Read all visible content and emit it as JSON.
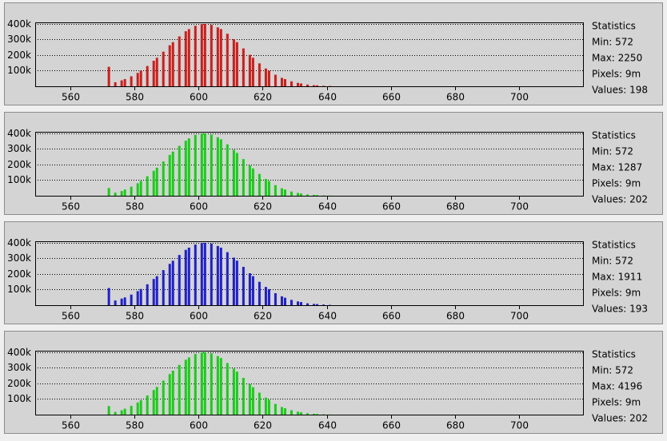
{
  "chart_data": [
    {
      "type": "bar",
      "color": "#c8201e",
      "xlim": [
        549,
        720
      ],
      "xticks": [
        560,
        580,
        600,
        620,
        640,
        660,
        680,
        700
      ],
      "ylim": [
        0,
        410000
      ],
      "yticks": [
        {
          "value": 100000,
          "label": "100k"
        },
        {
          "value": 200000,
          "label": "200k"
        },
        {
          "value": 300000,
          "label": "300k"
        },
        {
          "value": 400000,
          "label": "400k"
        }
      ],
      "grid": true,
      "statistics": [
        "Statistics",
        "Min: 572",
        "Max: 2250",
        "Pixels: 9m",
        "Values: 198"
      ],
      "x": [
        572,
        574,
        576,
        577,
        579,
        581,
        582,
        584,
        586,
        587,
        589,
        591,
        592,
        594,
        596,
        597,
        599,
        601,
        602,
        604,
        606,
        607,
        609,
        611,
        612,
        614,
        616,
        617,
        619,
        621,
        622,
        624,
        626,
        627,
        629,
        631,
        632,
        634,
        636,
        637,
        639,
        641
      ],
      "values": [
        125000,
        26000,
        38000,
        46000,
        64000,
        86000,
        100000,
        130000,
        164000,
        183000,
        222000,
        263000,
        283000,
        320000,
        353000,
        367000,
        388000,
        399000,
        400000,
        394000,
        378000,
        367000,
        337000,
        302000,
        283000,
        243000,
        202000,
        183000,
        147000,
        114000,
        100000,
        74000,
        54000,
        46000,
        32000,
        22000,
        18000,
        11000,
        7000,
        6000,
        3000,
        2000
      ]
    },
    {
      "type": "bar",
      "color": "#20c820",
      "xlim": [
        549,
        720
      ],
      "xticks": [
        560,
        580,
        600,
        620,
        640,
        660,
        680,
        700
      ],
      "ylim": [
        0,
        410000
      ],
      "yticks": [
        {
          "value": 100000,
          "label": "100k"
        },
        {
          "value": 200000,
          "label": "200k"
        },
        {
          "value": 300000,
          "label": "300k"
        },
        {
          "value": 400000,
          "label": "400k"
        }
      ],
      "grid": true,
      "statistics": [
        "Statistics",
        "Min: 572",
        "Max: 1287",
        "Pixels: 9m",
        "Values: 202"
      ],
      "x": [
        572,
        574,
        576,
        577,
        579,
        581,
        582,
        584,
        586,
        587,
        589,
        591,
        592,
        594,
        596,
        597,
        599,
        601,
        602,
        604,
        606,
        607,
        609,
        611,
        612,
        614,
        616,
        617,
        619,
        621,
        622,
        624,
        626,
        627,
        629,
        631,
        632,
        634,
        636,
        637,
        639,
        641
      ],
      "values": [
        50000,
        20000,
        30000,
        40000,
        58000,
        80000,
        95000,
        125000,
        160000,
        180000,
        220000,
        262000,
        283000,
        320000,
        353000,
        368000,
        390000,
        400000,
        400000,
        392000,
        375000,
        362000,
        330000,
        295000,
        275000,
        235000,
        195000,
        175000,
        140000,
        108000,
        94000,
        68000,
        48000,
        40000,
        27000,
        18000,
        14000,
        8000,
        5000,
        4000,
        2000,
        1000
      ]
    },
    {
      "type": "bar",
      "color": "#2020c8",
      "xlim": [
        549,
        720
      ],
      "xticks": [
        560,
        580,
        600,
        620,
        640,
        660,
        680,
        700
      ],
      "ylim": [
        0,
        410000
      ],
      "yticks": [
        {
          "value": 100000,
          "label": "100k"
        },
        {
          "value": 200000,
          "label": "200k"
        },
        {
          "value": 300000,
          "label": "300k"
        },
        {
          "value": 400000,
          "label": "400k"
        }
      ],
      "grid": true,
      "statistics": [
        "Statistics",
        "Min: 572",
        "Max: 1911",
        "Pixels: 9m",
        "Values: 193"
      ],
      "x": [
        572,
        574,
        576,
        577,
        579,
        581,
        582,
        584,
        586,
        587,
        589,
        591,
        592,
        594,
        596,
        597,
        599,
        601,
        602,
        604,
        606,
        607,
        609,
        611,
        612,
        614,
        616,
        617,
        619,
        621,
        622,
        624,
        626,
        627,
        629,
        631,
        632,
        634,
        636,
        637,
        639,
        641
      ],
      "values": [
        110000,
        30000,
        42000,
        50000,
        68000,
        90000,
        104000,
        134000,
        168000,
        186000,
        225000,
        265000,
        285000,
        322000,
        355000,
        369000,
        389000,
        399000,
        400000,
        395000,
        380000,
        369000,
        340000,
        305000,
        286000,
        246000,
        205000,
        186000,
        150000,
        117000,
        103000,
        77000,
        57000,
        48000,
        34000,
        24000,
        20000,
        12000,
        8000,
        7000,
        4000,
        2000
      ]
    },
    {
      "type": "bar",
      "color": "#20c820",
      "xlim": [
        549,
        720
      ],
      "xticks": [
        560,
        580,
        600,
        620,
        640,
        660,
        680,
        700
      ],
      "ylim": [
        0,
        410000
      ],
      "yticks": [
        {
          "value": 100000,
          "label": "100k"
        },
        {
          "value": 200000,
          "label": "200k"
        },
        {
          "value": 300000,
          "label": "300k"
        },
        {
          "value": 400000,
          "label": "400k"
        }
      ],
      "grid": true,
      "statistics": [
        "Statistics",
        "Min: 572",
        "Max: 4196",
        "Pixels: 9m",
        "Values: 202"
      ],
      "x": [
        572,
        574,
        576,
        577,
        579,
        581,
        582,
        584,
        586,
        587,
        589,
        591,
        592,
        594,
        596,
        597,
        599,
        601,
        602,
        604,
        606,
        607,
        609,
        611,
        612,
        614,
        616,
        617,
        619,
        621,
        622,
        624,
        626,
        627,
        629,
        631,
        632,
        634,
        636,
        637,
        639,
        641
      ],
      "values": [
        55000,
        18000,
        28000,
        38000,
        56000,
        78000,
        93000,
        123000,
        158000,
        178000,
        218000,
        260000,
        282000,
        319000,
        352000,
        367000,
        389000,
        400000,
        400000,
        393000,
        376000,
        363000,
        331000,
        296000,
        276000,
        236000,
        196000,
        176000,
        141000,
        109000,
        95000,
        69000,
        49000,
        41000,
        28000,
        19000,
        15000,
        9000,
        5000,
        4000,
        2000,
        1000
      ]
    }
  ]
}
